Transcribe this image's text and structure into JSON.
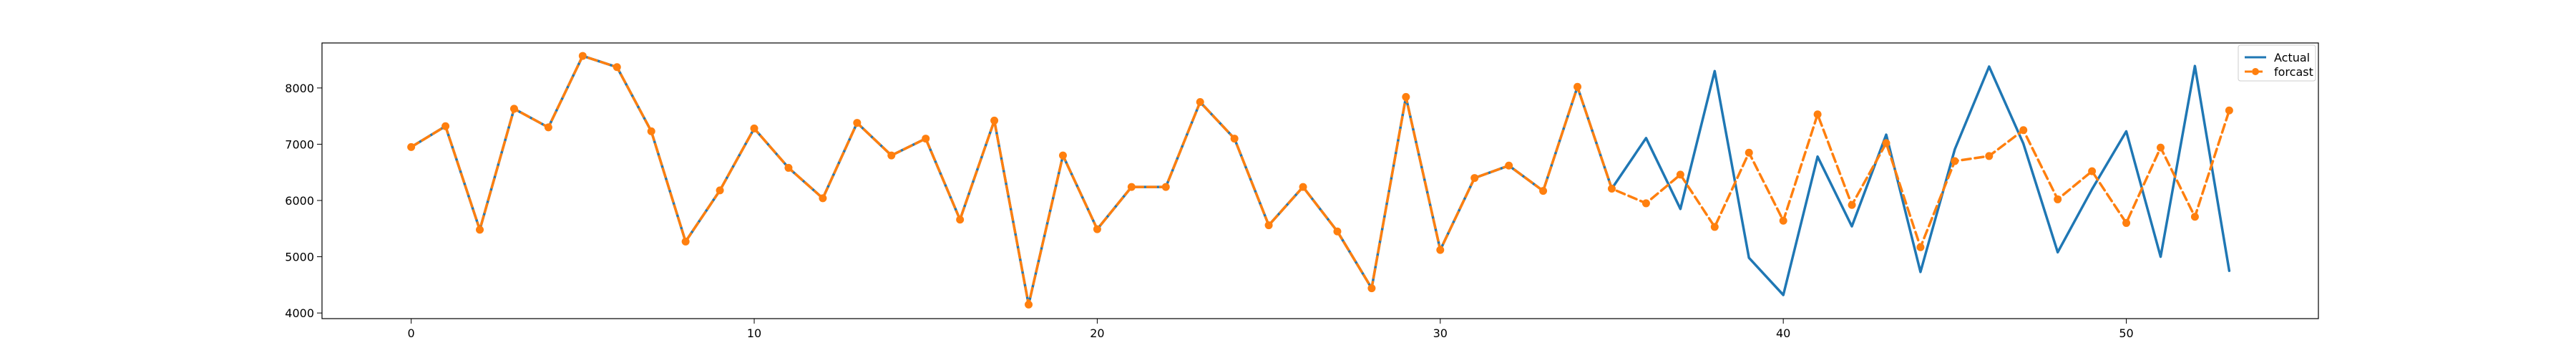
{
  "chart_data": {
    "type": "line",
    "title": "",
    "xlabel": "",
    "ylabel": "",
    "xlim": [
      -2.6,
      55.6
    ],
    "ylim": [
      3900,
      8800
    ],
    "xticks": [
      0,
      10,
      20,
      30,
      40,
      50
    ],
    "yticks": [
      4000,
      5000,
      6000,
      7000,
      8000
    ],
    "xtick_labels": [
      "0",
      "10",
      "20",
      "30",
      "40",
      "50"
    ],
    "ytick_labels": [
      "4000",
      "5000",
      "6000",
      "7000",
      "8000"
    ],
    "grid": false,
    "legend": {
      "position": "top-right",
      "entries": [
        "Actual",
        "forcast"
      ]
    },
    "colors": {
      "actual": "#1f77b4",
      "forecast": "#ff7f0e"
    },
    "series": [
      {
        "name": "Actual",
        "style": "solid",
        "x": [
          0,
          1,
          2,
          3,
          4,
          5,
          6,
          7,
          8,
          9,
          10,
          11,
          12,
          13,
          14,
          15,
          16,
          17,
          18,
          19,
          20,
          21,
          22,
          23,
          24,
          25,
          26,
          27,
          28,
          29,
          30,
          31,
          32,
          33,
          34,
          35,
          36,
          37,
          38,
          39,
          40,
          41,
          42,
          43,
          44,
          45,
          46,
          47,
          48,
          49,
          50,
          51,
          52,
          53
        ],
        "values": [
          6950,
          7320,
          5480,
          7630,
          7300,
          8570,
          8370,
          7230,
          5270,
          6180,
          7280,
          6580,
          6040,
          7380,
          6800,
          7100,
          5660,
          7420,
          4150,
          6800,
          5490,
          6240,
          6240,
          7750,
          7100,
          5560,
          6240,
          5450,
          4440,
          7840,
          5120,
          6400,
          6620,
          6170,
          8020,
          6210,
          7110,
          5850,
          8300,
          4980,
          4320,
          6780,
          5540,
          7170,
          4730,
          6910,
          8380,
          7010,
          5080,
          6200,
          7230,
          5000,
          8390,
          4750
        ]
      },
      {
        "name": "forcast",
        "style": "dashed",
        "marker": "circle",
        "x": [
          0,
          1,
          2,
          3,
          4,
          5,
          6,
          7,
          8,
          9,
          10,
          11,
          12,
          13,
          14,
          15,
          16,
          17,
          18,
          19,
          20,
          21,
          22,
          23,
          24,
          25,
          26,
          27,
          28,
          29,
          30,
          31,
          32,
          33,
          34,
          35,
          36,
          37,
          38,
          39,
          40,
          41,
          42,
          43,
          44,
          45,
          46,
          47,
          48,
          49,
          50,
          51,
          52,
          53
        ],
        "values": [
          6950,
          7320,
          5480,
          7630,
          7300,
          8570,
          8370,
          7230,
          5270,
          6180,
          7280,
          6580,
          6040,
          7380,
          6800,
          7100,
          5660,
          7420,
          4150,
          6800,
          5490,
          6240,
          6240,
          7750,
          7100,
          5560,
          6240,
          5450,
          4440,
          7840,
          5120,
          6400,
          6620,
          6170,
          8020,
          6210,
          5950,
          6460,
          5530,
          6850,
          5640,
          7530,
          5920,
          7020,
          5170,
          6700,
          6790,
          7250,
          6020,
          6520,
          5600,
          6940,
          5710,
          7600
        ]
      }
    ]
  }
}
